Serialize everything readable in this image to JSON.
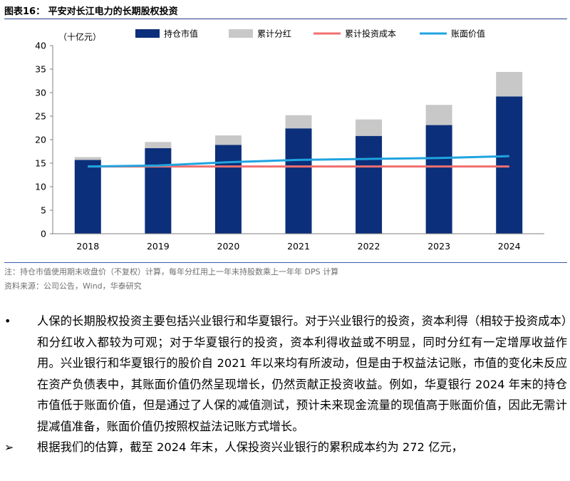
{
  "figure": {
    "title": "图表16：   平安对长江电力的长期股权投资",
    "note": "注：持仓市值使用期末收盘价（不复权）计算，每年分红用上一年末持股数乘上一年年 DPS 计算",
    "source": "资料来源：公司公告，Wind，华泰研究"
  },
  "chart_data": {
    "type": "bar",
    "unit_label": "（十亿元）",
    "categories": [
      "2018",
      "2019",
      "2020",
      "2021",
      "2022",
      "2023",
      "2024"
    ],
    "ylim": [
      0,
      40
    ],
    "yticks": [
      0,
      5,
      10,
      15,
      20,
      25,
      30,
      35,
      40
    ],
    "series": [
      {
        "name": "持仓市值",
        "kind": "stacked-bar",
        "color": "#0b2f7a",
        "values": [
          15.7,
          18.2,
          18.9,
          22.4,
          20.8,
          23.1,
          29.2
        ]
      },
      {
        "name": "累计分红",
        "kind": "stacked-bar",
        "color": "#c8c8c8",
        "values": [
          0.6,
          1.3,
          2.0,
          2.8,
          3.5,
          4.3,
          5.2
        ]
      },
      {
        "name": "累计投资成本",
        "kind": "line",
        "color": "#f0706e",
        "values": [
          14.3,
          14.3,
          14.3,
          14.3,
          14.3,
          14.3,
          14.3
        ]
      },
      {
        "name": "账面价值",
        "kind": "line",
        "color": "#1fa4e0",
        "values": [
          14.3,
          14.5,
          15.2,
          15.7,
          15.9,
          16.1,
          16.5
        ]
      }
    ]
  },
  "body": {
    "bullet": "•",
    "paragraph": "人保的长期股权投资主要包括兴业银行和华夏银行。对于兴业银行的投资，资本利得（相较于投资成本）和分红收入都较为可观；对于华夏银行的投资，资本利得收益或不明显，同时分红有一定增厚收益作用。兴业银行和华夏银行的股价自 2021 年以来均有所波动，但是由于权益法记账，市值的变化未反应在资产负债表中，其账面价值仍然呈现增长，仍然贡献正投资收益。例如，华夏银行 2024 年末的持仓市值低于账面价值，但是通过了人保的减值测试，预计未来现金流量的现值高于账面价值，因此无需计提减值准备，账面价值仍按照权益法记账方式增长。",
    "sub_arrow": "➢",
    "sub_paragraph": "根据我们的估算，截至 2024 年末，人保投资兴业银行的累积成本约为 272 亿元，"
  }
}
